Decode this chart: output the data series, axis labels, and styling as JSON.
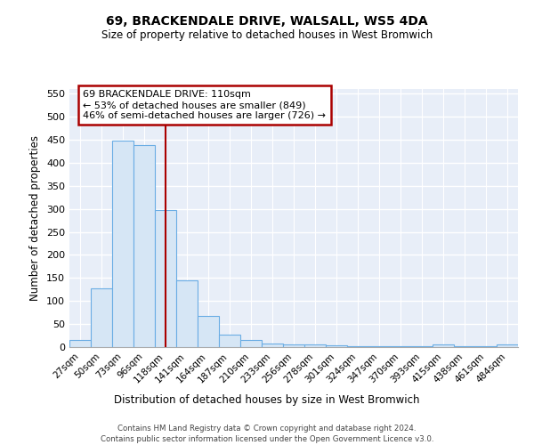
{
  "title": "69, BRACKENDALE DRIVE, WALSALL, WS5 4DA",
  "subtitle": "Size of property relative to detached houses in West Bromwich",
  "xlabel": "Distribution of detached houses by size in West Bromwich",
  "ylabel": "Number of detached properties",
  "annotation_line1": "69 BRACKENDALE DRIVE: 110sqm",
  "annotation_line2": "← 53% of detached houses are smaller (849)",
  "annotation_line3": "46% of semi-detached houses are larger (726) →",
  "bar_color": "#d6e6f5",
  "bar_edge_color": "#6aade4",
  "red_line_color": "#aa0000",
  "bg_color": "#e8eef8",
  "grid_color": "#ffffff",
  "categories": [
    "27sqm",
    "50sqm",
    "73sqm",
    "96sqm",
    "118sqm",
    "141sqm",
    "164sqm",
    "187sqm",
    "210sqm",
    "233sqm",
    "256sqm",
    "278sqm",
    "301sqm",
    "324sqm",
    "347sqm",
    "370sqm",
    "393sqm",
    "415sqm",
    "438sqm",
    "461sqm",
    "484sqm"
  ],
  "values": [
    15,
    128,
    448,
    438,
    297,
    145,
    68,
    27,
    15,
    8,
    6,
    5,
    3,
    2,
    2,
    2,
    2,
    6,
    1,
    1,
    6
  ],
  "red_line_x": 4,
  "ylim": [
    0,
    560
  ],
  "yticks": [
    0,
    50,
    100,
    150,
    200,
    250,
    300,
    350,
    400,
    450,
    500,
    550
  ],
  "footer1": "Contains HM Land Registry data © Crown copyright and database right 2024.",
  "footer2": "Contains public sector information licensed under the Open Government Licence v3.0."
}
